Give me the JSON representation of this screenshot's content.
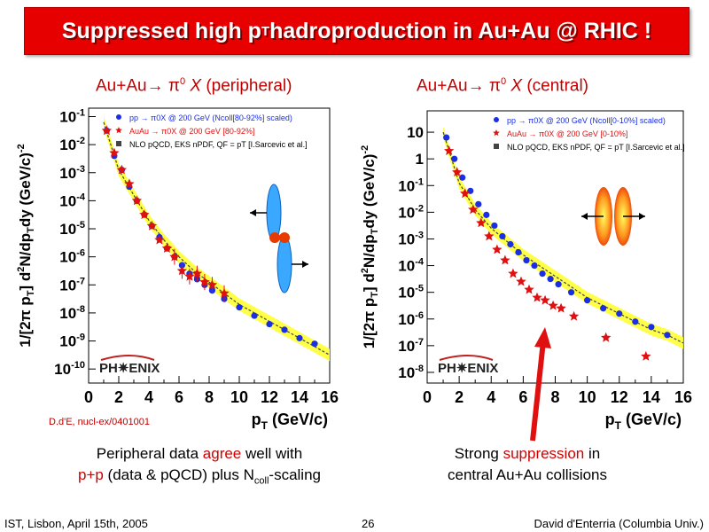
{
  "banner": {
    "title_main": "Suppressed high p",
    "title_sub": "T",
    "title_rest": " hadroproduction in Au+Au @ RHIC !"
  },
  "left_subtitle": {
    "pre": "Au+Au→ π",
    "sup": "0",
    "x": " X",
    "rest": " (peripheral)"
  },
  "right_subtitle": {
    "pre": "Au+Au→ π",
    "sup": "0",
    "x": " X",
    "rest": " (central)"
  },
  "reference": "D.d'E, nucl-ex/0401001",
  "caption_left": {
    "l1a": "Peripheral data ",
    "l1b": "agree",
    "l1c": " well with",
    "l2a": "p+p",
    "l2b": " (data & pQCD) plus N",
    "l2sub": "coll",
    "l2c": "-scaling"
  },
  "caption_right": {
    "l1a": "Strong ",
    "l1b": "suppression",
    "l1c": " in",
    "l2": "central Au+Au collisions"
  },
  "footer": {
    "left": "IST, Lisbon, April 15th, 2005",
    "page": "26",
    "right": "David d'Enterria (Columbia Univ.)"
  },
  "colors": {
    "banner": "#e60000",
    "pp": "#1a2ee6",
    "auau": "#e01010",
    "band": "#ffff33",
    "arrow": "#e01010"
  },
  "chart_data": [
    {
      "type": "scatter",
      "xlabel": "pT (GeV/c)",
      "ylabel": "1/[2π pT] d2N/dpTdy (GeV/c)-2",
      "xlim": [
        0,
        16
      ],
      "ylim_log10": [
        -10.5,
        -0.7
      ],
      "xticks": [
        0,
        2,
        4,
        6,
        8,
        10,
        12,
        14,
        16
      ],
      "yticks_exp": [
        -1,
        -2,
        -3,
        -4,
        -5,
        -6,
        -7,
        -8,
        -9,
        -10
      ],
      "legend": [
        "pp → π0X @ 200 GeV (Ncoll[80-92%] scaled)",
        "AuAu → π0X @ 200 GeV [80-92%]",
        "NLO pQCD, EKS nPDF, QF = pT [I.Sarcevic et al.]"
      ],
      "series": [
        {
          "name": "pp → π0X @ 200 GeV (Ncoll[80-92%] scaled)",
          "x": [
            1.2,
            1.7,
            2.2,
            2.7,
            3.2,
            3.7,
            4.2,
            4.7,
            5.2,
            5.7,
            6.2,
            6.7,
            7.2,
            7.7,
            8.2,
            9.0,
            10.0,
            11.0,
            12.0,
            13.0,
            14.0,
            15.0
          ],
          "y_log10": [
            -1.5,
            -2.4,
            -2.9,
            -3.5,
            -4.0,
            -4.5,
            -4.9,
            -5.3,
            -5.7,
            -6.0,
            -6.3,
            -6.6,
            -6.8,
            -7.0,
            -7.2,
            -7.5,
            -7.8,
            -8.1,
            -8.4,
            -8.6,
            -8.9,
            -9.1
          ]
        },
        {
          "name": "AuAu → π0X @ 200 GeV [80-92%]",
          "x": [
            1.2,
            1.7,
            2.2,
            2.7,
            3.2,
            3.7,
            4.2,
            4.7,
            5.2,
            5.7,
            6.2,
            6.7,
            7.2,
            7.7,
            8.2,
            9.0
          ],
          "y_log10": [
            -1.5,
            -2.3,
            -2.9,
            -3.4,
            -4.0,
            -4.5,
            -4.9,
            -5.4,
            -5.7,
            -6.0,
            -6.5,
            -6.7,
            -6.6,
            -6.9,
            -7.0,
            -7.3
          ]
        }
      ],
      "theory_x": [
        1.0,
        2.0,
        3.0,
        4.0,
        5.0,
        6.0,
        7.0,
        8.0,
        9.0,
        10.0,
        11.0,
        12.0,
        13.0,
        14.0,
        15.0,
        16.0
      ],
      "theory_y_log10": [
        -1.2,
        -2.9,
        -3.8,
        -4.7,
        -5.4,
        -6.0,
        -6.5,
        -6.9,
        -7.3,
        -7.7,
        -8.0,
        -8.3,
        -8.6,
        -8.9,
        -9.2,
        -9.5
      ]
    },
    {
      "type": "scatter",
      "xlabel": "pT (GeV/c)",
      "ylabel": "1/[2π pT] d2N/dpTdy (GeV/c)-2",
      "xlim": [
        0,
        16
      ],
      "ylim_log10": [
        -8.4,
        1.8
      ],
      "xticks": [
        0,
        2,
        4,
        6,
        8,
        10,
        12,
        14,
        16
      ],
      "yticks": [
        "10",
        "1",
        "10-1",
        "10-2",
        "10-3",
        "10-4",
        "10-5",
        "10-6",
        "10-7",
        "10-8"
      ],
      "legend": [
        "pp → π0X @ 200 GeV (Ncoll[0-10%] scaled)",
        "AuAu → π0X @ 200 GeV [0-10%]",
        "NLO pQCD, EKS nPDF, QF = pT [I.Sarcevic et al.]"
      ],
      "series": [
        {
          "name": "pp → π0X @ 200 GeV (Ncoll[0-10%] scaled)",
          "x": [
            1.2,
            1.7,
            2.2,
            2.7,
            3.2,
            3.7,
            4.2,
            4.7,
            5.2,
            5.7,
            6.2,
            6.7,
            7.2,
            7.7,
            8.2,
            9.0,
            10.0,
            11.0,
            12.0,
            13.0,
            14.0,
            15.0
          ],
          "y_log10": [
            0.8,
            0.0,
            -0.7,
            -1.2,
            -1.7,
            -2.1,
            -2.5,
            -2.9,
            -3.2,
            -3.5,
            -3.8,
            -4.0,
            -4.3,
            -4.5,
            -4.7,
            -5.0,
            -5.3,
            -5.6,
            -5.8,
            -6.1,
            -6.3,
            -6.6
          ]
        },
        {
          "name": "AuAu → π0X @ 200 GeV [0-10%]",
          "x": [
            1.2,
            1.7,
            2.2,
            2.7,
            3.2,
            3.7,
            4.2,
            4.7,
            5.2,
            5.7,
            6.2,
            6.7,
            7.2,
            7.7,
            8.2,
            9.0,
            11.0,
            13.5
          ],
          "y_log10": [
            0.3,
            -0.5,
            -1.3,
            -1.9,
            -2.4,
            -2.9,
            -3.4,
            -3.8,
            -4.3,
            -4.6,
            -4.9,
            -5.2,
            -5.3,
            -5.5,
            -5.6,
            -5.9,
            -6.7,
            -7.4
          ]
        }
      ],
      "theory_x": [
        1.0,
        2.0,
        3.0,
        4.0,
        5.0,
        6.0,
        7.0,
        8.0,
        9.0,
        10.0,
        11.0,
        12.0,
        13.0,
        14.0,
        15.0,
        16.0
      ],
      "theory_y_log10": [
        1.0,
        -0.9,
        -1.9,
        -2.6,
        -3.1,
        -3.6,
        -4.0,
        -4.4,
        -4.8,
        -5.2,
        -5.5,
        -5.8,
        -6.1,
        -6.4,
        -6.6,
        -6.9
      ]
    }
  ]
}
